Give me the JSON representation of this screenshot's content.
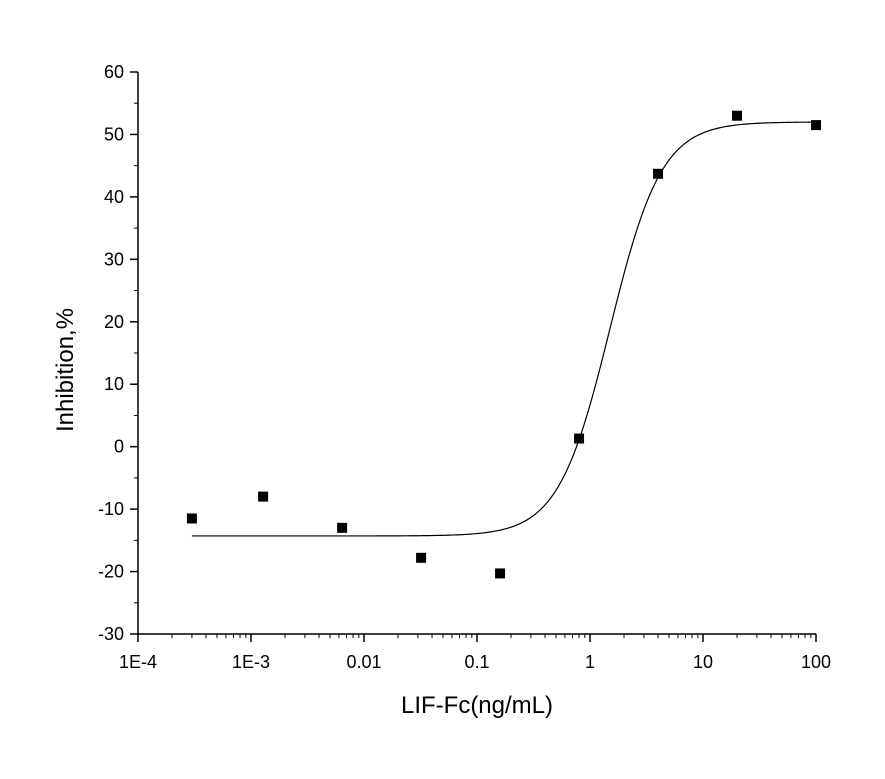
{
  "chart_data": {
    "type": "scatter",
    "title": "",
    "xlabel": "LIF-Fc(ng/mL)",
    "ylabel": "Inhibition,%",
    "xscale": "log",
    "xlim": [
      0.0001,
      100
    ],
    "ylim": [
      -30,
      60
    ],
    "grid": false,
    "xticks": [
      {
        "value": 0.0001,
        "label": "1E-4"
      },
      {
        "value": 0.001,
        "label": "1E-3"
      },
      {
        "value": 0.01,
        "label": "0.01"
      },
      {
        "value": 0.1,
        "label": "0.1"
      },
      {
        "value": 1,
        "label": "1"
      },
      {
        "value": 10,
        "label": "10"
      },
      {
        "value": 100,
        "label": "100"
      }
    ],
    "yticks": [
      {
        "value": -30,
        "label": "-30"
      },
      {
        "value": -20,
        "label": "-20"
      },
      {
        "value": -10,
        "label": "-10"
      },
      {
        "value": 0,
        "label": "0"
      },
      {
        "value": 10,
        "label": "10"
      },
      {
        "value": 20,
        "label": "20"
      },
      {
        "value": 30,
        "label": "30"
      },
      {
        "value": 40,
        "label": "40"
      },
      {
        "value": 50,
        "label": "50"
      },
      {
        "value": 60,
        "label": "60"
      }
    ],
    "points": [
      {
        "x": 0.0003,
        "y": -11.5
      },
      {
        "x": 0.00128,
        "y": -8.0
      },
      {
        "x": 0.0064,
        "y": -13.0
      },
      {
        "x": 0.032,
        "y": -17.8
      },
      {
        "x": 0.16,
        "y": -20.3
      },
      {
        "x": 0.8,
        "y": 1.3
      },
      {
        "x": 4.0,
        "y": 43.7
      },
      {
        "x": 20.0,
        "y": 53.0
      },
      {
        "x": 100.0,
        "y": 51.5
      }
    ],
    "fit": {
      "model": "4PL",
      "bottom": -14.3,
      "top": 52.0,
      "ec50": 1.5,
      "hill": 1.9,
      "x_range": [
        0.0003,
        100
      ]
    },
    "colors": {
      "axis": "#000000",
      "marker": "#000000",
      "fit_line": "#000000"
    }
  }
}
